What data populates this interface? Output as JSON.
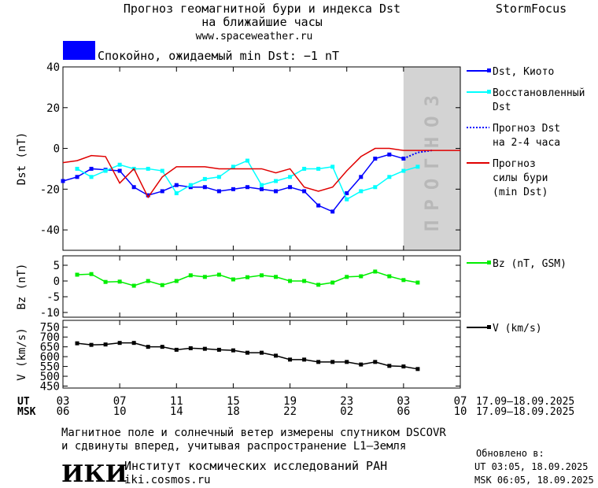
{
  "header": {
    "title_line1": "Прогноз геомагнитной бури и индекса Dst",
    "title_line2": "на ближайшие часы",
    "site": "www.spaceweather.ru",
    "brand": "StormFocus",
    "status": {
      "text": "Спокойно, ожидаемый min Dst: −1 nT",
      "color": "#0000ff"
    }
  },
  "chart_data": [
    {
      "type": "line",
      "ylabel": "Dst (nT)",
      "xlim": [
        0,
        28
      ],
      "ylim": [
        -50,
        40
      ],
      "yticks": [
        -40,
        -20,
        0,
        20,
        40
      ],
      "forecast_region": [
        24,
        28
      ],
      "forecast_label": "ПРОГНОЗ",
      "forecast_color": "#d3d3d3",
      "series": [
        {
          "name": "Dst, Киото",
          "color": "#0000ff",
          "marker": "square",
          "x": [
            0,
            1,
            2,
            3,
            4,
            5,
            6,
            7,
            8,
            9,
            10,
            11,
            12,
            13,
            14,
            15,
            16,
            17,
            18,
            19,
            20,
            21,
            22,
            23,
            24
          ],
          "values": [
            -16,
            -14,
            -10,
            -10.5,
            -11,
            -19,
            -23,
            -21,
            -18,
            -19,
            -19,
            -21,
            -20,
            -19,
            -20,
            -21,
            -19,
            -21,
            -28,
            -31,
            -22,
            -14,
            -5,
            -3,
            -5
          ]
        },
        {
          "name": "Восстановленный\nDst",
          "color": "#00ffff",
          "marker": "square",
          "x": [
            1,
            2,
            3,
            4,
            5,
            6,
            7,
            8,
            9,
            10,
            11,
            12,
            13,
            14,
            15,
            16,
            17,
            18,
            19,
            20,
            21,
            22,
            23,
            24,
            25
          ],
          "values": [
            -10,
            -14,
            -11,
            -8,
            -10,
            -10,
            -11,
            -22,
            -18,
            -15,
            -14,
            -9,
            -6,
            -18,
            -16,
            -14,
            -10,
            -10,
            -9,
            -25,
            -21,
            -19,
            -14,
            -11,
            -9
          ]
        },
        {
          "name": "Прогноз Dst\nна 2-4 часа",
          "color": "#0000ff",
          "dash": "dotted",
          "x": [
            24,
            25,
            26
          ],
          "values": [
            -5,
            -2,
            -1
          ]
        },
        {
          "name": "Прогноз\nсилы бури\n(min Dst)",
          "color": "#e00000",
          "x": [
            0,
            1,
            2,
            3,
            4,
            5,
            6,
            7,
            8,
            9,
            10,
            11,
            12,
            13,
            14,
            15,
            16,
            17,
            18,
            19,
            20,
            21,
            22,
            23,
            24,
            25,
            26,
            27,
            28
          ],
          "values": [
            -7,
            -6,
            -3.5,
            -4,
            -17,
            -10,
            -24,
            -14,
            -9,
            -9,
            -9,
            -10,
            -10,
            -10,
            -10,
            -12,
            -10,
            -19,
            -21,
            -19,
            -11,
            -4,
            0,
            0,
            -1,
            -1,
            -1,
            -1,
            -1
          ]
        }
      ]
    },
    {
      "type": "line",
      "ylabel": "Bz (nT)",
      "xlim": [
        0,
        28
      ],
      "ylim": [
        -11.5,
        8
      ],
      "yticks": [
        -10,
        -5,
        0,
        5
      ],
      "series": [
        {
          "name": "Bz (nT, GSM)",
          "color": "#00ee00",
          "marker": "square",
          "x": [
            1,
            2,
            3,
            4,
            5,
            6,
            7,
            8,
            9,
            10,
            11,
            12,
            13,
            14,
            15,
            16,
            17,
            18,
            19,
            20,
            21,
            22,
            23,
            24,
            25
          ],
          "values": [
            2,
            2.2,
            -0.3,
            -0.2,
            -1.5,
            0,
            -1.3,
            0,
            1.8,
            1.3,
            2,
            0.5,
            1.2,
            1.8,
            1.3,
            0,
            0,
            -1.2,
            -0.5,
            1.3,
            1.5,
            3,
            1.5,
            0.3,
            -0.5
          ]
        }
      ]
    },
    {
      "type": "line",
      "ylabel": "V (km/s)",
      "xlim": [
        0,
        28
      ],
      "ylim": [
        440,
        785
      ],
      "yticks": [
        450,
        500,
        550,
        600,
        650,
        700,
        750
      ],
      "series": [
        {
          "name": "V (km/s)",
          "color": "#000000",
          "marker": "square",
          "x": [
            1,
            2,
            3,
            4,
            5,
            6,
            7,
            8,
            9,
            10,
            11,
            12,
            13,
            14,
            15,
            16,
            17,
            18,
            19,
            20,
            21,
            22,
            23,
            24,
            25
          ],
          "values": [
            668,
            660,
            662,
            670,
            670,
            650,
            650,
            635,
            643,
            640,
            635,
            632,
            620,
            620,
            605,
            585,
            585,
            573,
            573,
            573,
            560,
            573,
            553,
            550,
            537
          ]
        }
      ],
      "xticks": [
        {
          "value": 0,
          "label": "03"
        },
        {
          "value": 4,
          "label": "07"
        },
        {
          "value": 8,
          "label": "11"
        },
        {
          "value": 12,
          "label": "15"
        },
        {
          "value": 16,
          "label": "19"
        },
        {
          "value": 20,
          "label": "23"
        },
        {
          "value": 24,
          "label": "03"
        },
        {
          "value": 28,
          "label": "07"
        }
      ],
      "xticks_msk": [
        {
          "value": 0,
          "label": "06"
        },
        {
          "value": 4,
          "label": "10"
        },
        {
          "value": 8,
          "label": "14"
        },
        {
          "value": 12,
          "label": "18"
        },
        {
          "value": 16,
          "label": "22"
        },
        {
          "value": 20,
          "label": "02"
        },
        {
          "value": 24,
          "label": "06"
        },
        {
          "value": 28,
          "label": "10"
        }
      ],
      "ut_label": "UT",
      "msk_label": "MSK",
      "ut_dates": "17.09–18.09.2025",
      "msk_dates": "17.09–18.09.2025"
    }
  ],
  "footer": {
    "note_line1": "Магнитное поле и солнечный ветер измерены спутником DSCOVR",
    "note_line2": "и сдвинуты вперед, учитывая распространение L1–Земля",
    "logo": "ИКИ",
    "institute": "Институт космических исследований РАН",
    "url": "iki.cosmos.ru",
    "updated_title": "Обновлено в:",
    "updated_ut": "UT  03:05, 18.09.2025",
    "updated_msk": "MSK 06:05, 18.09.2025"
  }
}
